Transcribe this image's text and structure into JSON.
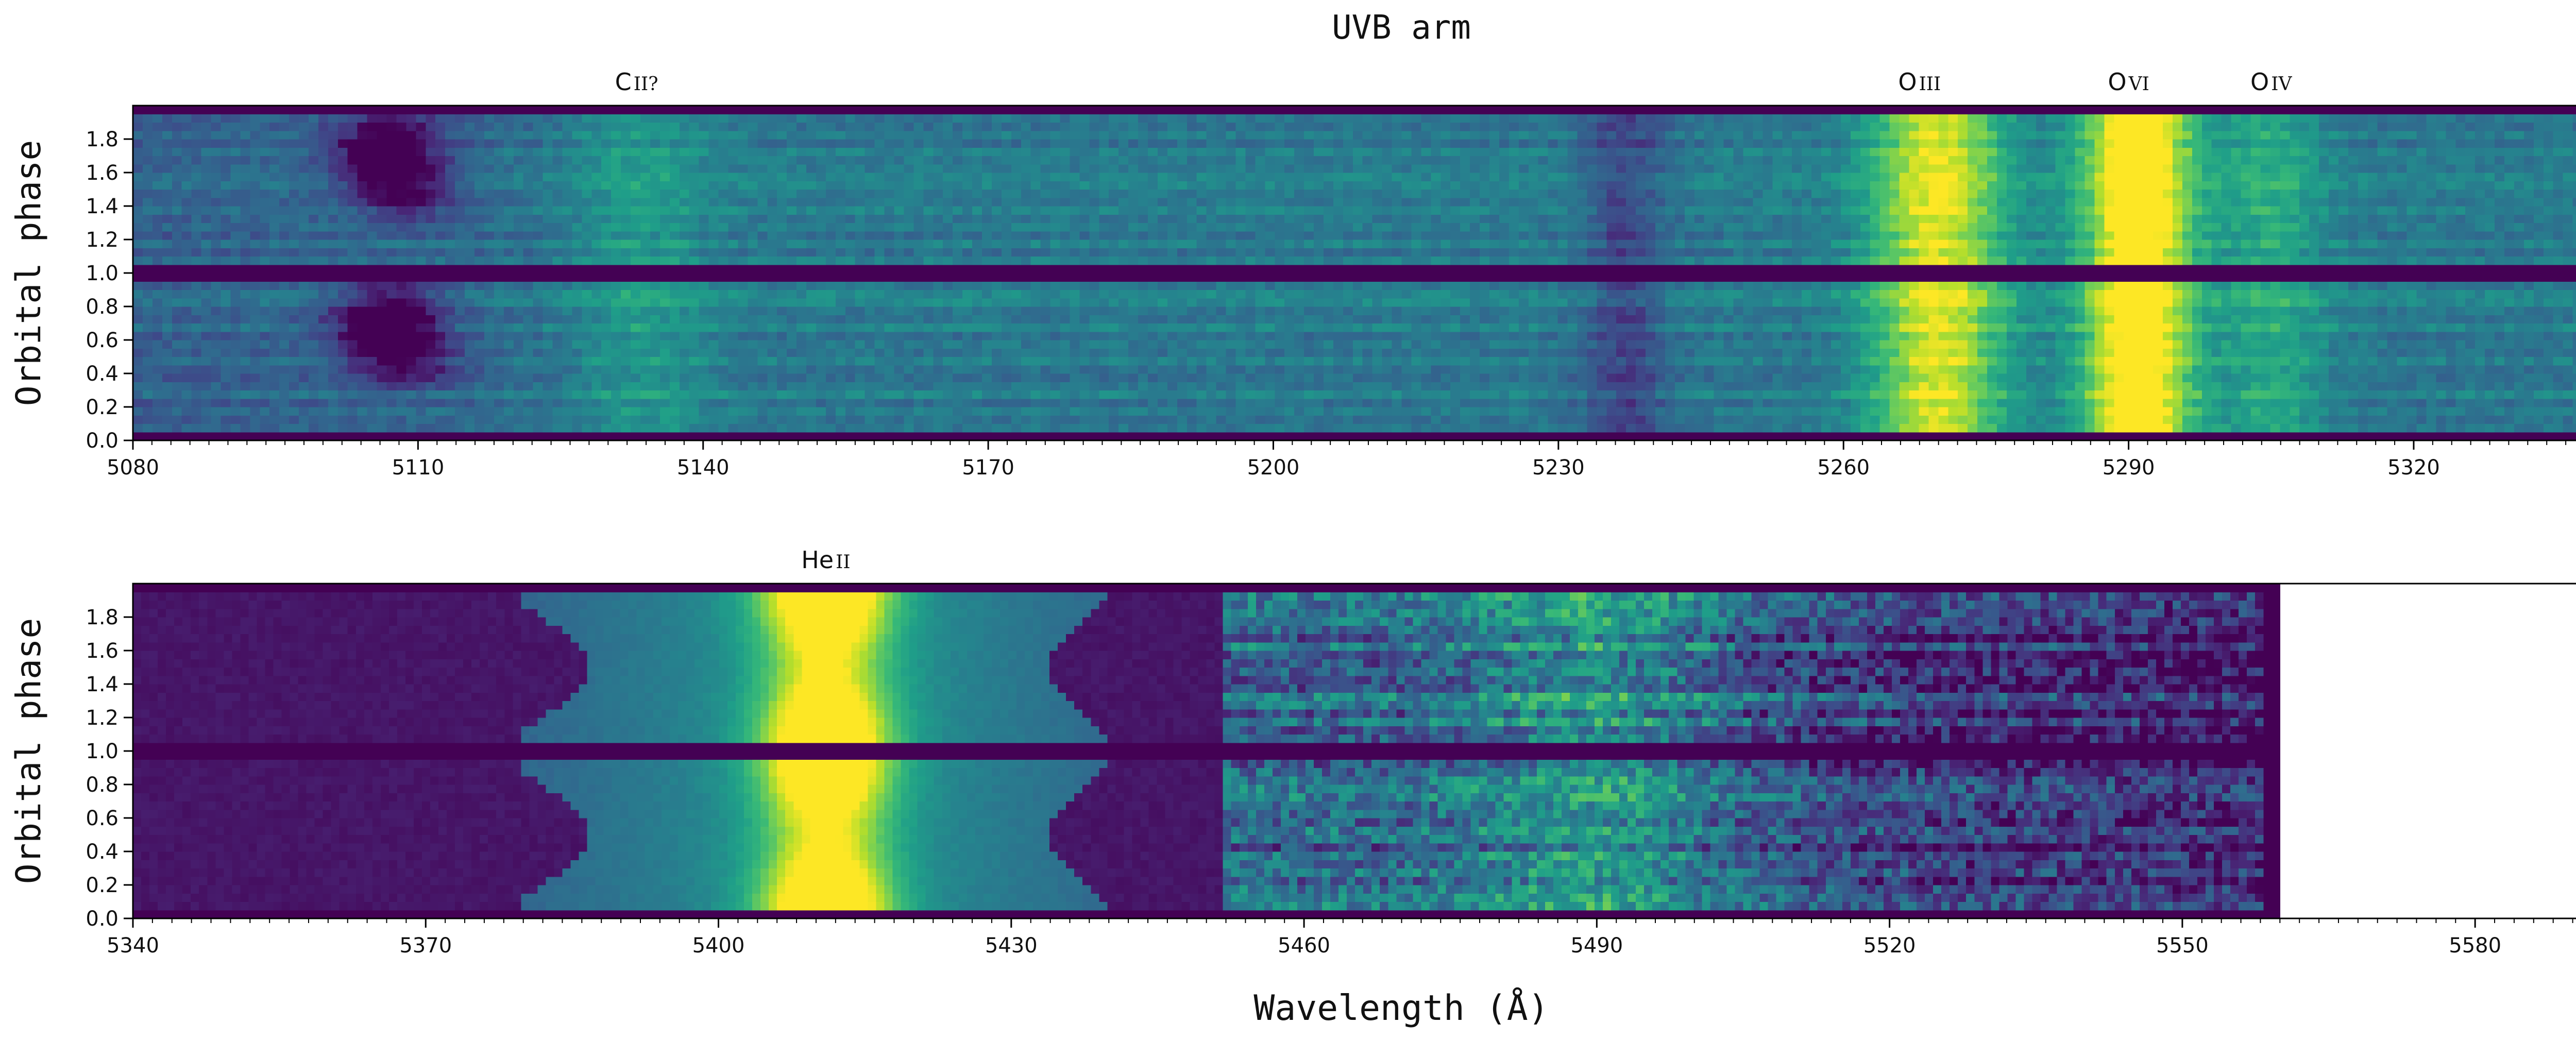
{
  "figure": {
    "title": "UVB arm",
    "xlabel": "Wavelength (Å)"
  },
  "colors": {
    "viridis_dark": "#440154",
    "viridis_mid": "#21918c",
    "viridis_light": "#fde725",
    "axis": "#000000"
  },
  "chart_data": [
    {
      "type": "heatmap",
      "colormap": "viridis",
      "ylabel": "Orbital phase",
      "xlim": [
        5080,
        5347
      ],
      "ylim": [
        0,
        2
      ],
      "xticks": [
        5080,
        5110,
        5140,
        5170,
        5200,
        5230,
        5260,
        5290,
        5320
      ],
      "yticks": [
        0.0,
        0.2,
        0.4,
        0.6,
        0.8,
        1.0,
        1.2,
        1.4,
        1.6,
        1.8
      ],
      "xtick_labels": [
        "5080",
        "5110",
        "5140",
        "5170",
        "5200",
        "5230",
        "5260",
        "5290",
        "5320"
      ],
      "ytick_labels": [
        "0.0",
        "0.2",
        "0.4",
        "0.6",
        "0.8",
        "1.0",
        "1.2",
        "1.4",
        "1.6",
        "1.8"
      ],
      "data_extent": [
        5080,
        5347
      ],
      "annotations": [
        {
          "label": "C",
          "ion": "II?",
          "wavelength": 5133
        },
        {
          "label": "O",
          "ion": "III",
          "wavelength": 5268
        },
        {
          "label": "O",
          "ion": "VI",
          "wavelength": 5290
        },
        {
          "label": "O",
          "ion": "IV",
          "wavelength": 5305
        }
      ],
      "features": [
        {
          "wavelength": 5108,
          "width": 4,
          "intensity": -0.55,
          "note": "absorption, phase-dependent"
        },
        {
          "wavelength": 5133,
          "width": 5,
          "intensity": 0.15
        },
        {
          "wavelength": 5237,
          "width": 3,
          "intensity": -0.2
        },
        {
          "wavelength": 5270,
          "width": 5,
          "intensity": 0.55
        },
        {
          "wavelength": 5291,
          "width": 4,
          "intensity": 0.75
        },
        {
          "wavelength": 5305,
          "width": 4,
          "intensity": 0.2
        }
      ]
    },
    {
      "type": "heatmap",
      "colormap": "viridis",
      "ylabel": "Orbital phase",
      "xlim": [
        5340,
        5600
      ],
      "ylim": [
        0,
        2
      ],
      "xticks": [
        5340,
        5370,
        5400,
        5430,
        5460,
        5490,
        5520,
        5550,
        5580
      ],
      "yticks": [
        0.0,
        0.2,
        0.4,
        0.6,
        0.8,
        1.0,
        1.2,
        1.4,
        1.6,
        1.8
      ],
      "xtick_labels": [
        "5340",
        "5370",
        "5400",
        "5430",
        "5460",
        "5490",
        "5520",
        "5550",
        "5580"
      ],
      "ytick_labels": [
        "0.0",
        "0.2",
        "0.4",
        "0.6",
        "0.8",
        "1.0",
        "1.2",
        "1.4",
        "1.6",
        "1.8"
      ],
      "data_extent": [
        5340,
        5560
      ],
      "annotations": [
        {
          "label": "He",
          "ion": "II",
          "wavelength": 5411
        }
      ],
      "features": [
        {
          "wavelength": 5411,
          "width": 12,
          "intensity": 0.9,
          "note": "broad He II 5411 emission"
        },
        {
          "wavelength": 5490,
          "width": 10,
          "intensity": 0.25
        }
      ]
    }
  ]
}
